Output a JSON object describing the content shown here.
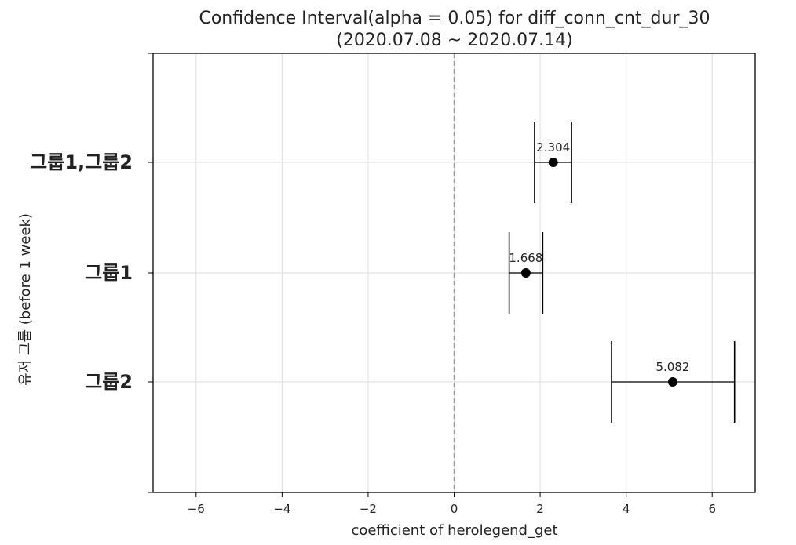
{
  "chart_data": {
    "type": "scatter",
    "title": "Confidence Interval(alpha = 0.05) for diff_conn_cnt_dur_30",
    "subtitle": "(2020.07.08 ~ 2020.07.14)",
    "xlabel": "coefficient of herolegend_get",
    "ylabel": "유저 그룹 (before 1 week)",
    "xlim": [
      -7,
      7
    ],
    "xticks": [
      -6,
      -4,
      -2,
      0,
      2,
      4,
      6
    ],
    "xtick_labels": [
      "−6",
      "−4",
      "−2",
      "0",
      "2",
      "4",
      "6"
    ],
    "grid": true,
    "reference_line": {
      "x": 0,
      "style": "dashed"
    },
    "categories": [
      "그룹1,그룹2",
      "그룹1",
      "그룹2"
    ],
    "points": [
      {
        "category": "그룹1,그룹2",
        "estimate": 2.304,
        "lower": 1.87,
        "upper": 2.73,
        "label": "2.304"
      },
      {
        "category": "그룹1",
        "estimate": 1.668,
        "lower": 1.28,
        "upper": 2.06,
        "label": "1.668"
      },
      {
        "category": "그룹2",
        "estimate": 5.082,
        "lower": 3.66,
        "upper": 6.52,
        "label": "5.082"
      }
    ],
    "colors": {
      "marker": "#000000",
      "errorbar": "#000000",
      "grid": "#dddddd",
      "zero_line": "#999999",
      "axis": "#000000"
    }
  }
}
